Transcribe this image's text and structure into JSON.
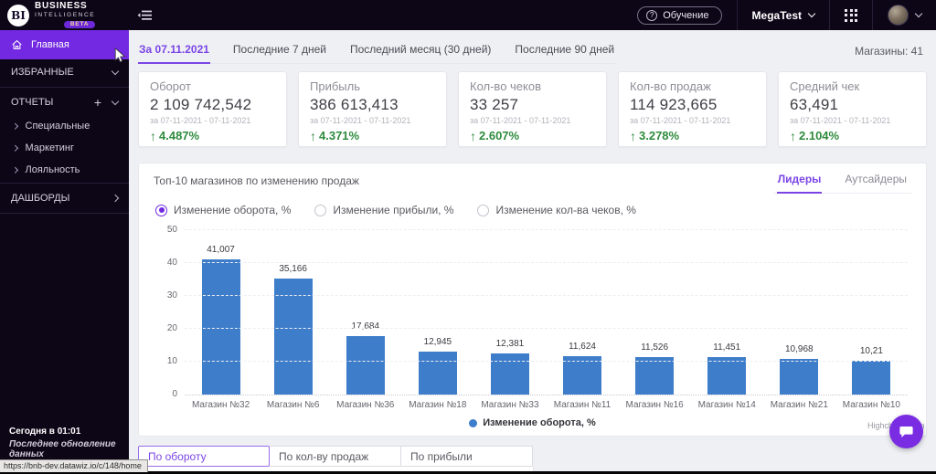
{
  "topbar": {
    "training_label": "Обучение",
    "org_label": "MegaTest"
  },
  "icons": {
    "question": "?",
    "plus": "+",
    "up_arrow": "↑"
  },
  "sidebar": {
    "logo": {
      "monogram": "BI",
      "line1": "BUSINESS",
      "line2": "INTELLIGENCE",
      "badge": "BETA"
    },
    "home_label": "Главная",
    "favorites_label": "ИЗБРАННЫЕ",
    "reports_label": "ОТЧЕТЫ",
    "reports_children": [
      "Специальные",
      "Маркетинг",
      "Лояльность"
    ],
    "dashboards_label": "ДАШБОРДЫ",
    "last_update_time": "Сегодня в 01:01",
    "last_update_label": "Последнее обновление данных"
  },
  "status_bar_url": "https://bnb-dev.datawiz.io/c/148/home",
  "period_tabs": [
    {
      "label": "За 07.11.2021",
      "active": true
    },
    {
      "label": "Последние 7 дней",
      "active": false
    },
    {
      "label": "Последний месяц (30 дней)",
      "active": false
    },
    {
      "label": "Последние 90 дней",
      "active": false
    }
  ],
  "stores_count": "Магазины: 41",
  "cards": [
    {
      "title": "Оборот",
      "value": "2 109 742,542",
      "period": "за 07-11-2021 - 07-11-2021",
      "delta": "4.487%",
      "direction": "up"
    },
    {
      "title": "Прибыль",
      "value": "386 613,413",
      "period": "за 07-11-2021 - 07-11-2021",
      "delta": "4.371%",
      "direction": "up"
    },
    {
      "title": "Кол-во чеков",
      "value": "33 257",
      "period": "за 07-11-2021 - 07-11-2021",
      "delta": "2.607%",
      "direction": "up"
    },
    {
      "title": "Кол-во продаж",
      "value": "114 923,665",
      "period": "за 07-11-2021 - 07-11-2021",
      "delta": "3.278%",
      "direction": "up"
    },
    {
      "title": "Средний чек",
      "value": "63,491",
      "period": "за 07-11-2021 - 07-11-2021",
      "delta": "2.104%",
      "direction": "up"
    }
  ],
  "chart_panel": {
    "title": "Топ-10 магазинов по изменению продаж",
    "view_tabs": [
      {
        "label": "Лидеры",
        "active": true
      },
      {
        "label": "Аутсайдеры",
        "active": false
      }
    ],
    "radios": [
      {
        "label": "Изменение оборота, %",
        "selected": true
      },
      {
        "label": "Изменение прибыли, %",
        "selected": false
      },
      {
        "label": "Изменение кол-ва чеков, %",
        "selected": false
      }
    ],
    "legend_label": "Изменение оборота, %",
    "credit": "Highcharts.com"
  },
  "chart_data": {
    "type": "bar",
    "title": "Топ-10 магазинов по изменению продаж",
    "series_name": "Изменение оборота, %",
    "categories": [
      "Магазин №32",
      "Магазин №6",
      "Магазин №36",
      "Магазин №18",
      "Магазин №33",
      "Магазин №11",
      "Магазин №16",
      "Магазин №14",
      "Магазин №21",
      "Магазин №10"
    ],
    "values": [
      41.007,
      35.166,
      17.684,
      12.945,
      12.381,
      11.624,
      11.526,
      11.451,
      10.968,
      10.21
    ],
    "value_labels": [
      "41,007",
      "35,166",
      "17,684",
      "12,945",
      "12,381",
      "11,624",
      "11,526",
      "11,451",
      "10,968",
      "10,21"
    ],
    "xlabel": "",
    "ylabel": "",
    "ylim": [
      0,
      50
    ],
    "yticks": [
      0,
      10,
      20,
      30,
      40,
      50
    ],
    "grid": true,
    "legend_position": "bottom",
    "bar_color": "#3e7dc9"
  },
  "bottom_tabs": [
    {
      "label": "По обороту",
      "active": true
    },
    {
      "label": "По кол-ву продаж",
      "active": false
    },
    {
      "label": "По прибыли",
      "active": false
    }
  ],
  "colors": {
    "accent": "#7229e1",
    "accent_text": "#7b45e6",
    "positive": "#2e8b3d",
    "bar": "#3e7dc9",
    "dark_bg": "#0d0617"
  }
}
